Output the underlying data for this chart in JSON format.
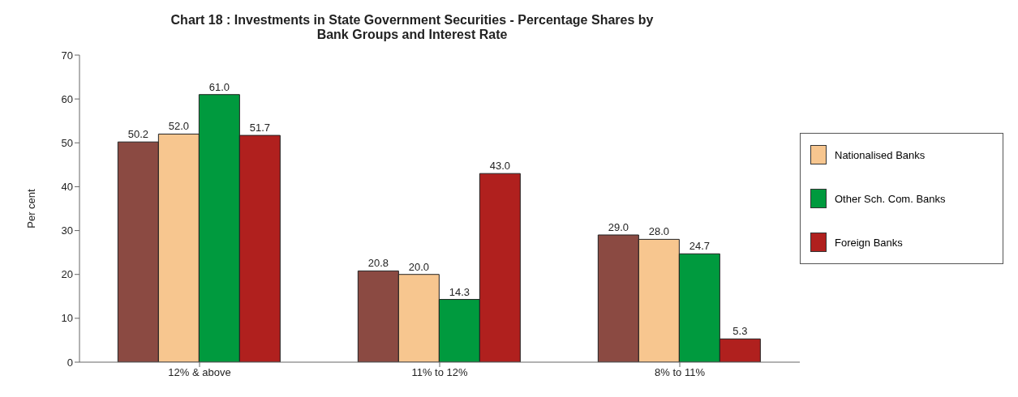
{
  "chart_data": {
    "type": "bar",
    "title": "Chart 18 : Investments in State Government Securities - Percentage Shares by Bank Groups and Interest Rate",
    "ylabel": "Per cent",
    "categories": [
      "12% & above",
      "11% to 12%",
      "8% to 11%"
    ],
    "series": [
      {
        "color": "#8b4a42",
        "values": [
          50.2,
          20.8,
          29.0
        ],
        "value_labels": [
          "50.2",
          "20.8",
          "29.0"
        ]
      },
      {
        "name": "Nationalised Banks",
        "color": "#f7c68f",
        "values": [
          52.0,
          20.0,
          28.0
        ],
        "value_labels": [
          "52.0",
          "20.0",
          "28.0"
        ]
      },
      {
        "name": "Other Sch. Com. Banks",
        "color": "#009a3e",
        "values": [
          61.0,
          14.3,
          24.7
        ],
        "value_labels": [
          "61.0",
          "14.3",
          "24.7"
        ]
      },
      {
        "name": "Foreign Banks",
        "color": "#b0201e",
        "values": [
          51.7,
          43.0,
          5.3
        ],
        "value_labels": [
          "51.7",
          "43.0",
          "5.3"
        ]
      }
    ],
    "ylim": [
      0,
      70
    ],
    "yticks": [
      0,
      10,
      20,
      30,
      40,
      50,
      60,
      70
    ],
    "grid": false,
    "legend": "right"
  }
}
